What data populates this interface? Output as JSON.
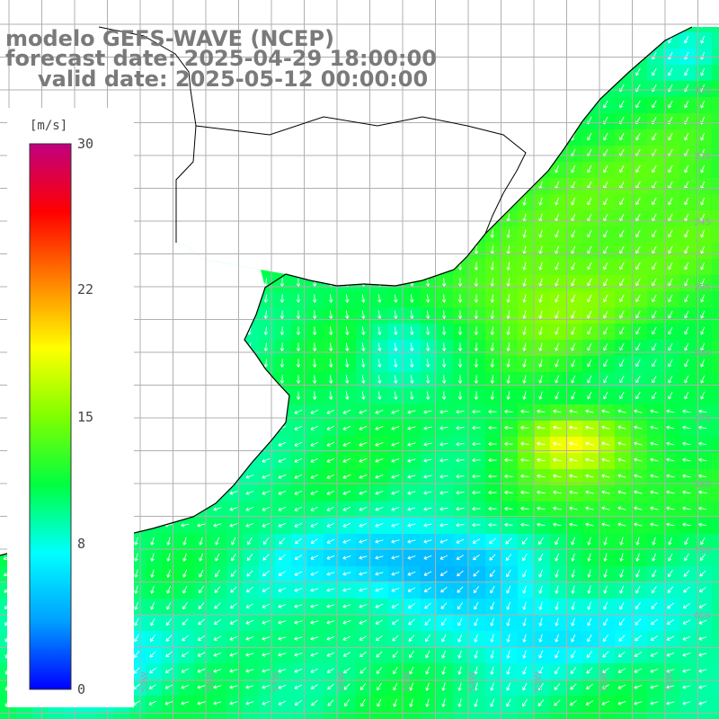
{
  "title": {
    "line1": "modelo GEFS-WAVE (NCEP)",
    "line2": "forecast date: 2025-04-29 18:00:00",
    "line3": "valid date: 2025-05-12 00:00:00"
  },
  "colorbar": {
    "unit": "[m/s]",
    "min": 0,
    "max": 30,
    "ticks": [
      "30",
      "22",
      "15",
      "8",
      "0"
    ],
    "tick_values": [
      30,
      22,
      15,
      8,
      0
    ],
    "stops": [
      "#0000ff",
      "#00a0ff",
      "#00ffff",
      "#00ff40",
      "#80ff00",
      "#ffff00",
      "#ff8000",
      "#ff0000",
      "#c00080"
    ]
  },
  "map": {
    "variable": "wind speed",
    "region": "Rio de la Plata / South Atlantic",
    "lat_labels": [
      "32S",
      "33S",
      "34S",
      "35S",
      "36S",
      "37S",
      "38S",
      "39S",
      "40S"
    ],
    "lon_labels": [
      "61W",
      "60W",
      "59W",
      "58W",
      "57W",
      "56W",
      "55W",
      "54W",
      "53W",
      "52W",
      "51W"
    ],
    "land_color": "#ffffff",
    "grid_color": "#b0b0b0",
    "coast_color": "#000000",
    "arrow_color": "#ffffff"
  }
}
